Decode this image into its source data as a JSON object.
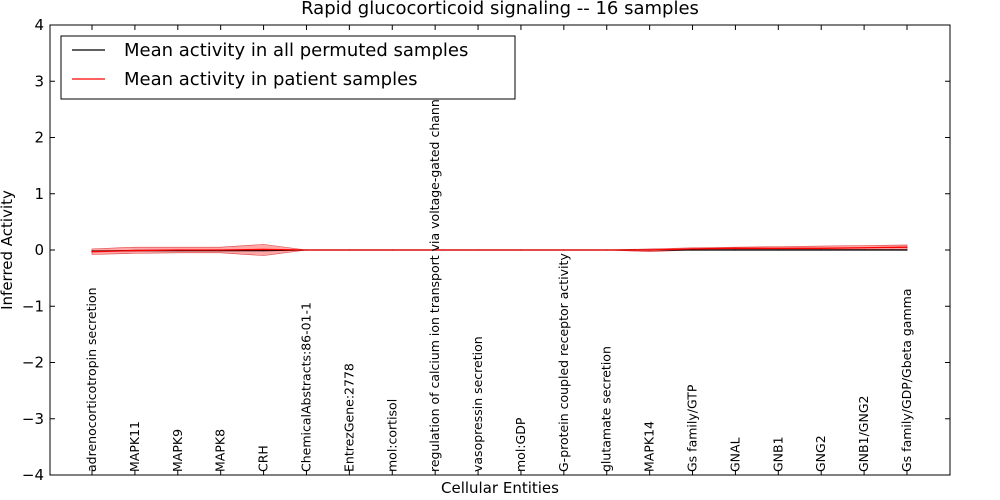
{
  "chart_data": {
    "type": "line",
    "title": "Rapid glucocorticoid signaling -- 16 samples",
    "xlabel": "Cellular Entities",
    "ylabel": "Inferred Activity",
    "ylim": [
      -4,
      4
    ],
    "yticks": [
      4,
      3,
      2,
      1,
      0,
      -1,
      -2,
      -3,
      -4
    ],
    "ytick_labels": [
      "4",
      "3",
      "2",
      "1",
      "0",
      "−1",
      "−2",
      "−3",
      "−4"
    ],
    "categories": [
      "adrenocorticotropin secretion",
      "MAPK11",
      "MAPK9",
      "MAPK8",
      "CRH",
      "ChemicalAbstracts:86-01-1",
      "EntrezGene:2778",
      "mol:cortisol",
      "regulation of calcium ion transport via voltage-gated channel",
      "vasopressin secretion",
      "mol:GDP",
      "G-protein coupled receptor activity",
      "glutamate secretion",
      "MAPK14",
      "Gs family/GTP",
      "GNAL",
      "GNB1",
      "GNG2",
      "GNB1/GNG2",
      "Gs family/GDP/Gbeta gamma"
    ],
    "series": [
      {
        "name": "Mean activity in all permuted samples",
        "color": "#000000",
        "values": [
          -0.02,
          -0.01,
          -0.01,
          -0.01,
          -0.01,
          0,
          0,
          0,
          0,
          0,
          0,
          0,
          0,
          0,
          0,
          0,
          0,
          0,
          0,
          0
        ]
      },
      {
        "name": "Mean activity in patient samples",
        "color": "#ff0000",
        "values": [
          -0.03,
          -0.01,
          0,
          0,
          0.01,
          0,
          0,
          0,
          0,
          0,
          0,
          0,
          0,
          0,
          0.02,
          0.03,
          0.03,
          0.03,
          0.04,
          0.05
        ],
        "band_upper": [
          0.02,
          0.05,
          0.05,
          0.05,
          0.1,
          0,
          0,
          0,
          0,
          0,
          0,
          0,
          0,
          0.02,
          0.04,
          0.05,
          0.06,
          0.07,
          0.08,
          0.09
        ],
        "band_lower": [
          -0.08,
          -0.06,
          -0.05,
          -0.05,
          -0.1,
          0,
          0,
          0,
          0,
          0,
          0,
          0,
          0,
          -0.03,
          0,
          0.01,
          0.01,
          0.01,
          0.01,
          0.01
        ]
      }
    ],
    "legend_location": "top-left"
  }
}
